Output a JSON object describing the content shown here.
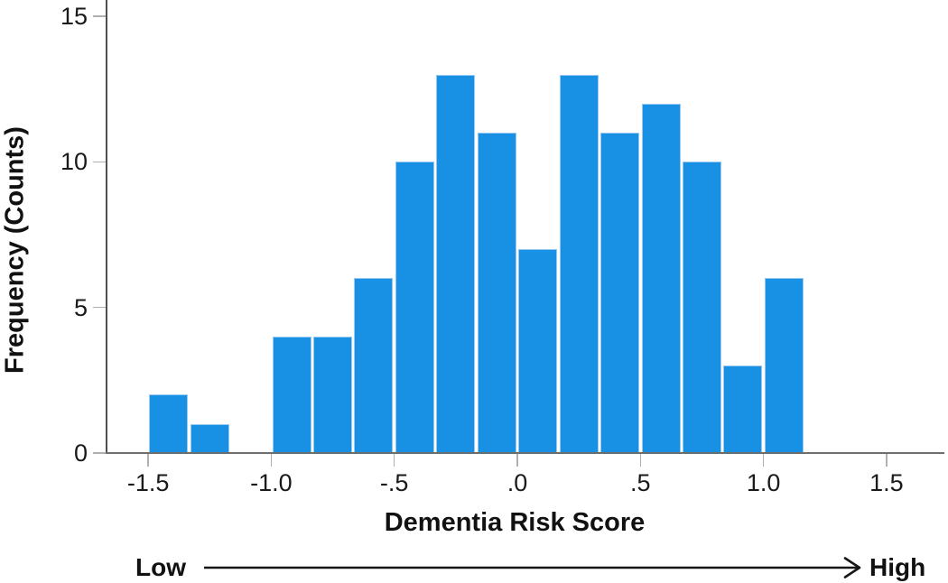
{
  "chart_data": {
    "type": "bar",
    "subtype": "histogram",
    "title": "",
    "xlabel": "Dementia Risk Score",
    "ylabel": "Frequency (Counts)",
    "xlim": [
      -1.67,
      1.73
    ],
    "ylim": [
      0,
      15
    ],
    "grid": false,
    "legend": "none",
    "bin_width": 0.1667,
    "bins": [
      {
        "start": -1.5,
        "count": 2
      },
      {
        "start": -1.3333,
        "count": 1
      },
      {
        "start": -1.1667,
        "count": 0
      },
      {
        "start": -1.0,
        "count": 4
      },
      {
        "start": -0.8333,
        "count": 4
      },
      {
        "start": -0.6667,
        "count": 6
      },
      {
        "start": -0.5,
        "count": 10
      },
      {
        "start": -0.3333,
        "count": 13
      },
      {
        "start": -0.1667,
        "count": 11
      },
      {
        "start": 0.0,
        "count": 7
      },
      {
        "start": 0.1667,
        "count": 13
      },
      {
        "start": 0.3333,
        "count": 11
      },
      {
        "start": 0.5,
        "count": 12
      },
      {
        "start": 0.6667,
        "count": 10
      },
      {
        "start": 0.8333,
        "count": 3
      },
      {
        "start": 1.0,
        "count": 6
      }
    ],
    "x_ticks": [
      {
        "value": -1.5,
        "label": "-1.5"
      },
      {
        "value": -1.0,
        "label": "-1.0"
      },
      {
        "value": -0.5,
        "label": "-.5"
      },
      {
        "value": 0.0,
        "label": ".0"
      },
      {
        "value": 0.5,
        "label": ".5"
      },
      {
        "value": 1.0,
        "label": "1.0"
      },
      {
        "value": 1.5,
        "label": "1.5"
      }
    ],
    "y_ticks": [
      {
        "value": 0,
        "label": "0"
      },
      {
        "value": 5,
        "label": "5"
      },
      {
        "value": 10,
        "label": "10"
      },
      {
        "value": 15,
        "label": "15"
      }
    ],
    "annotation": {
      "low_label": "Low",
      "high_label": "High"
    },
    "colors": {
      "bar_fill": "#1890E4",
      "bar_edge": "#97C9F0",
      "y_axis_line": "#4F4F4F",
      "x_axis_line": "#6E6E6E",
      "tick_mark": "#B0B0B0",
      "text": "#1A1A1A",
      "annotation_arrow": "#161616"
    }
  }
}
